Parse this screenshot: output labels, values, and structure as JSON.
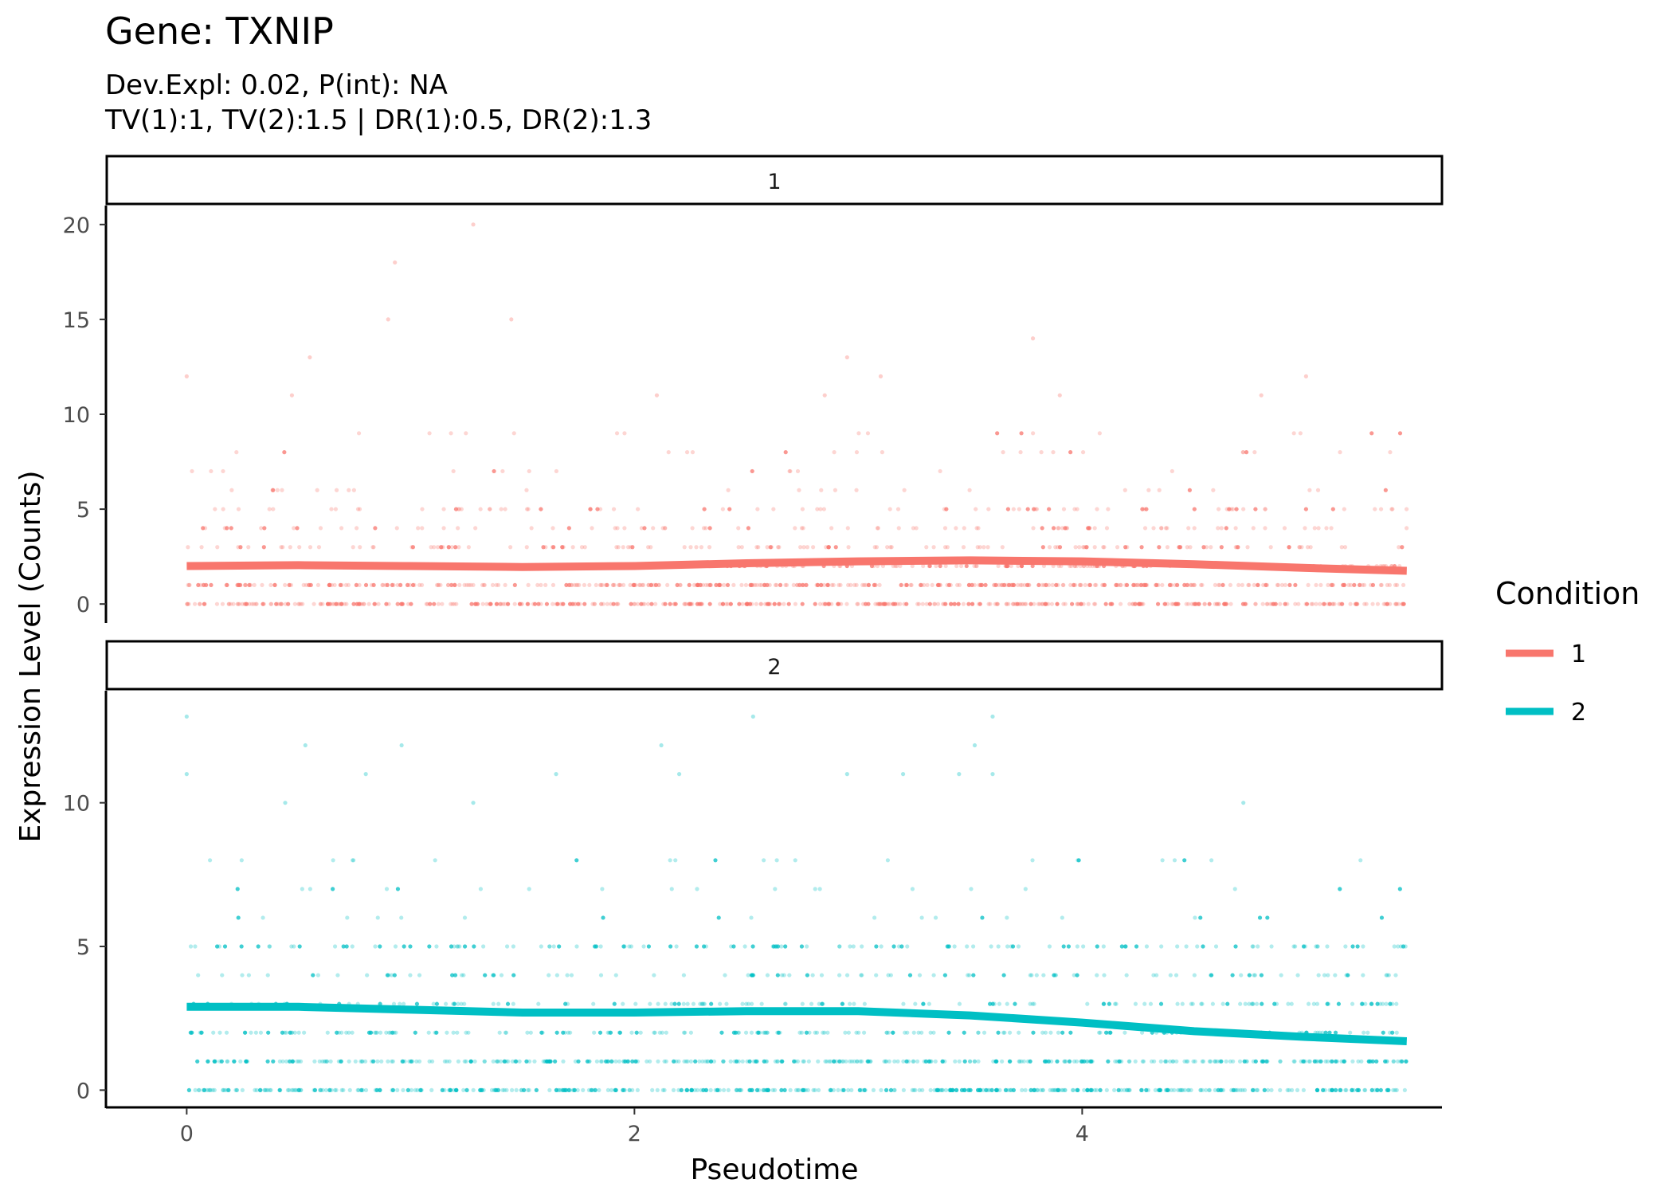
{
  "chart_data": {
    "type": "scatter",
    "title": "Gene: TXNIP",
    "subtitle_line1": "Dev.Expl: 0.02, P(int): NA",
    "subtitle_line2": "TV(1):1, TV(2):1.5 | DR(1):0.5, DR(2):1.3",
    "xlabel": "Pseudotime",
    "ylabel": "Expression Level (Counts)",
    "xlim": [
      -0.35,
      5.6
    ],
    "x_ticks": [
      0,
      2,
      4
    ],
    "x_tick_labels": [
      "0",
      "2",
      "4"
    ],
    "grid": false,
    "legend": {
      "title": "Condition",
      "position": "right",
      "entries": [
        {
          "label": "1",
          "color": "#F8766D"
        },
        {
          "label": "2",
          "color": "#00BFC4"
        }
      ]
    },
    "facets": [
      {
        "strip": "1",
        "color": "#F8766D",
        "ylim": [
          -1,
          21
        ],
        "y_ticks": [
          0,
          5,
          10,
          15,
          20
        ],
        "y_tick_labels": [
          "0",
          "5",
          "10",
          "15",
          "20"
        ],
        "smooth": {
          "x": [
            0,
            0.5,
            1.0,
            1.5,
            2.0,
            2.5,
            3.0,
            3.5,
            4.0,
            4.5,
            5.0,
            5.45
          ],
          "y": [
            2.0,
            2.05,
            2.0,
            1.95,
            2.0,
            2.15,
            2.25,
            2.3,
            2.25,
            2.1,
            1.9,
            1.75
          ]
        },
        "outliers": [
          {
            "x": 1.28,
            "y": 20
          },
          {
            "x": 0.93,
            "y": 18
          },
          {
            "x": 0.9,
            "y": 15
          },
          {
            "x": 1.45,
            "y": 15
          },
          {
            "x": 3.78,
            "y": 14
          },
          {
            "x": 0.55,
            "y": 13
          },
          {
            "x": 2.95,
            "y": 13
          },
          {
            "x": 0.0,
            "y": 12
          },
          {
            "x": 3.1,
            "y": 12
          },
          {
            "x": 5.0,
            "y": 12
          },
          {
            "x": 0.47,
            "y": 11
          },
          {
            "x": 2.1,
            "y": 11
          },
          {
            "x": 2.85,
            "y": 11
          },
          {
            "x": 3.9,
            "y": 11
          },
          {
            "x": 4.8,
            "y": 11
          }
        ]
      },
      {
        "strip": "2",
        "color": "#00BFC4",
        "ylim": [
          -0.6,
          13.9
        ],
        "y_ticks": [
          0,
          5,
          10
        ],
        "y_tick_labels": [
          "0",
          "5",
          "10"
        ],
        "smooth": {
          "x": [
            0,
            0.5,
            1.0,
            1.5,
            2.0,
            2.5,
            3.0,
            3.5,
            4.0,
            4.5,
            5.0,
            5.45
          ],
          "y": [
            2.9,
            2.9,
            2.8,
            2.7,
            2.7,
            2.75,
            2.75,
            2.6,
            2.35,
            2.05,
            1.85,
            1.7
          ]
        },
        "outliers": [
          {
            "x": 0.0,
            "y": 13
          },
          {
            "x": 2.53,
            "y": 13
          },
          {
            "x": 3.6,
            "y": 13
          },
          {
            "x": 0.53,
            "y": 12
          },
          {
            "x": 0.96,
            "y": 12
          },
          {
            "x": 2.12,
            "y": 12
          },
          {
            "x": 3.52,
            "y": 12
          },
          {
            "x": 0.0,
            "y": 11
          },
          {
            "x": 0.8,
            "y": 11
          },
          {
            "x": 1.65,
            "y": 11
          },
          {
            "x": 2.2,
            "y": 11
          },
          {
            "x": 2.95,
            "y": 11
          },
          {
            "x": 3.2,
            "y": 11
          },
          {
            "x": 3.45,
            "y": 11
          },
          {
            "x": 3.6,
            "y": 11
          },
          {
            "x": 4.72,
            "y": 10
          },
          {
            "x": 1.28,
            "y": 10
          },
          {
            "x": 0.44,
            "y": 10
          }
        ]
      }
    ]
  }
}
